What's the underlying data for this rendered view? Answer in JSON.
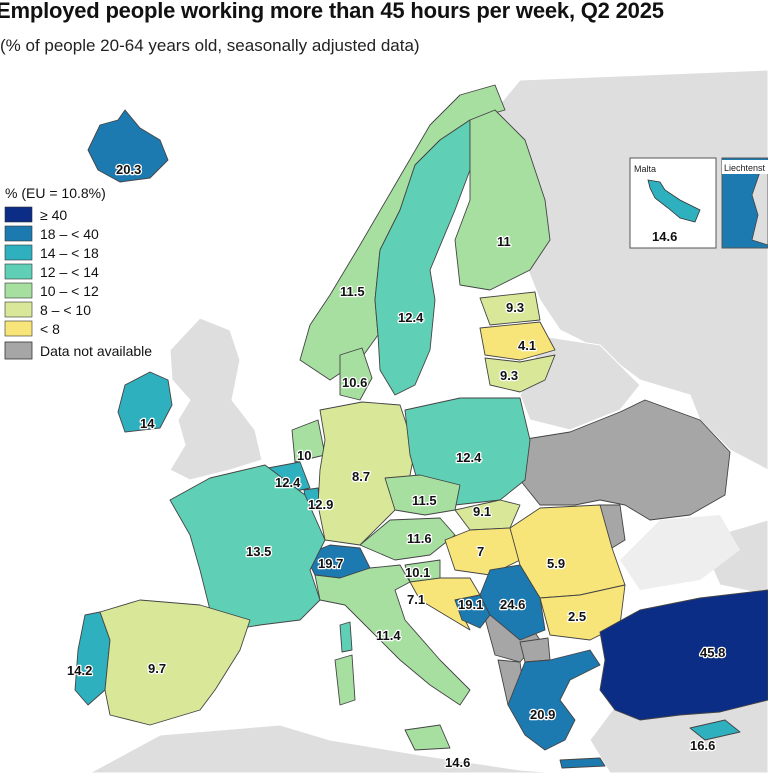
{
  "title": "Employed people working more than 45 hours per week, Q2 2025",
  "subtitle": "(% of people 20-64 years old, seasonally adjusted data)",
  "legend": {
    "title": "% (EU = 10.8%)",
    "items": [
      {
        "label": "≥ 40",
        "color": "#0b2d85"
      },
      {
        "label": "18 – < 40",
        "color": "#1d7ab0"
      },
      {
        "label": "14 – < 18",
        "color": "#2fb0bf"
      },
      {
        "label": "12 – < 14",
        "color": "#5fd0b5"
      },
      {
        "label": "10 – < 12",
        "color": "#a6dfa0"
      },
      {
        "label": "8 – < 10",
        "color": "#d8e898"
      },
      {
        "label": "< 8",
        "color": "#f8e57a"
      }
    ],
    "nodata_label": "Data not available",
    "nodata_color": "#a6a6a6"
  },
  "insets": {
    "malta": {
      "title": "Malta",
      "value": "14.6"
    },
    "liechtenstein": {
      "title": "Liechtenst"
    }
  },
  "values": {
    "iceland": "20.3",
    "ireland": "14",
    "norway": "11.5",
    "sweden": "12.4",
    "finland": "11",
    "estonia": "9.3",
    "latvia": "4.1",
    "lithuania": "9.3",
    "denmark": "10.6",
    "netherlands": "10",
    "belgium": "12.4",
    "luxembourg": "12.9",
    "germany": "8.7",
    "poland": "12.4",
    "czechia": "11.5",
    "slovakia": "9.1",
    "austria": "11.6",
    "hungary": "7",
    "romania": "5.9",
    "bulgaria": "2.5",
    "slovenia": "10.1",
    "croatia": "7.1",
    "bosnia": "19.1",
    "serbia": "24.6",
    "switzerland": "19.7",
    "france": "13.5",
    "portugal": "14.2",
    "spain": "9.7",
    "italy": "11.4",
    "greece": "20.9",
    "turkey": "45.8",
    "cyprus": "16.6",
    "sicily_malta": "14.6"
  }
}
